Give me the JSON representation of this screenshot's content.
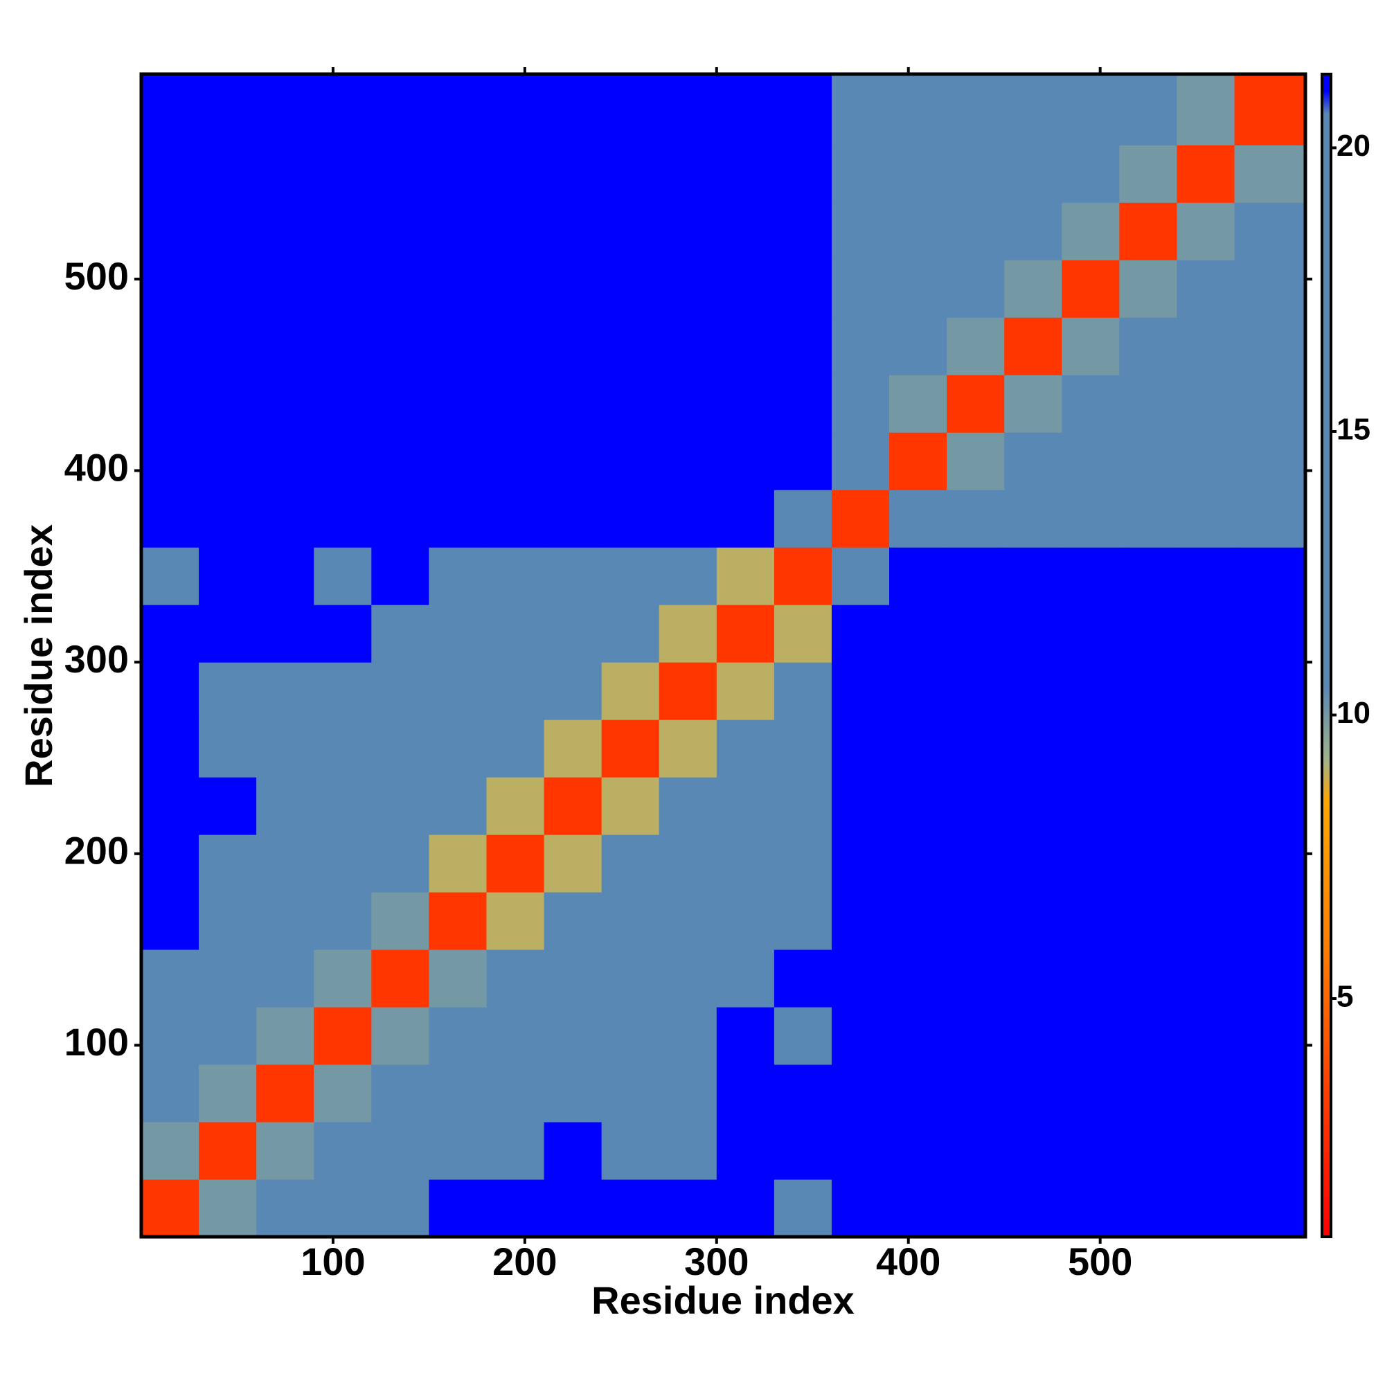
{
  "chart_data": {
    "type": "heatmap",
    "x_label": "Residue index",
    "y_label": "Residue index",
    "bins": [
      0,
      30,
      60,
      90,
      120,
      150,
      180,
      210,
      240,
      270,
      300,
      330,
      360,
      390,
      420,
      450,
      480,
      510,
      540,
      570,
      607
    ],
    "z": [
      [
        3,
        10,
        14,
        12,
        16,
        21,
        21,
        21,
        21,
        21,
        21,
        16,
        21,
        21,
        21,
        21,
        21,
        21,
        21,
        21
      ],
      [
        10,
        3,
        10,
        12,
        16,
        14,
        17,
        21,
        16,
        13,
        21,
        21,
        21,
        21,
        21,
        21,
        21,
        21,
        21,
        21
      ],
      [
        14,
        10,
        3,
        10,
        13,
        14,
        17,
        17,
        13,
        15,
        21,
        21,
        21,
        21,
        21,
        21,
        21,
        21,
        21,
        21
      ],
      [
        12,
        12,
        10,
        3,
        10,
        12,
        16,
        17,
        14,
        16,
        21,
        16,
        21,
        21,
        21,
        21,
        21,
        21,
        21,
        21
      ],
      [
        16,
        16,
        13,
        10,
        3,
        10,
        13,
        16,
        17,
        16,
        17,
        21,
        21,
        21,
        21,
        21,
        21,
        21,
        21,
        21
      ],
      [
        21,
        14,
        14,
        12,
        10,
        3,
        9,
        13,
        16,
        16,
        13,
        12,
        21,
        21,
        21,
        21,
        21,
        21,
        21,
        21
      ],
      [
        21,
        17,
        17,
        16,
        13,
        9,
        3,
        9,
        12,
        13,
        12,
        16,
        21,
        21,
        21,
        21,
        21,
        21,
        21,
        21
      ],
      [
        21,
        21,
        17,
        17,
        16,
        13,
        9,
        3,
        9,
        12,
        16,
        17,
        21,
        21,
        21,
        21,
        21,
        21,
        21,
        21
      ],
      [
        21,
        16,
        13,
        14,
        17,
        16,
        12,
        9,
        3,
        9,
        13,
        16,
        21,
        21,
        21,
        21,
        21,
        21,
        21,
        21
      ],
      [
        21,
        13,
        15,
        16,
        16,
        16,
        13,
        12,
        9,
        3,
        9,
        12,
        21,
        21,
        21,
        21,
        21,
        21,
        21,
        21
      ],
      [
        21,
        21,
        21,
        21,
        17,
        13,
        12,
        16,
        13,
        9,
        3,
        9,
        21,
        21,
        21,
        21,
        21,
        21,
        21,
        21
      ],
      [
        16,
        21,
        21,
        16,
        21,
        12,
        16,
        17,
        16,
        12,
        9,
        3,
        12,
        21,
        21,
        21,
        21,
        21,
        21,
        21
      ],
      [
        21,
        21,
        21,
        21,
        21,
        21,
        21,
        21,
        21,
        21,
        21,
        12,
        3,
        12,
        18,
        18,
        18,
        18,
        18,
        18
      ],
      [
        21,
        21,
        21,
        21,
        21,
        21,
        21,
        21,
        21,
        21,
        21,
        21,
        12,
        3,
        10,
        13,
        16,
        17,
        16,
        16
      ],
      [
        21,
        21,
        21,
        21,
        21,
        21,
        21,
        21,
        21,
        21,
        21,
        21,
        18,
        10,
        3,
        10,
        15,
        16,
        17,
        16
      ],
      [
        21,
        21,
        21,
        21,
        21,
        21,
        21,
        21,
        21,
        21,
        21,
        21,
        18,
        13,
        10,
        3,
        10,
        14,
        15,
        17
      ],
      [
        21,
        21,
        21,
        21,
        21,
        21,
        21,
        21,
        21,
        21,
        21,
        21,
        18,
        16,
        15,
        10,
        3,
        10,
        13,
        15
      ],
      [
        21,
        21,
        21,
        21,
        21,
        21,
        21,
        21,
        21,
        21,
        21,
        21,
        18,
        17,
        16,
        14,
        10,
        3,
        10,
        13
      ],
      [
        21,
        21,
        21,
        21,
        21,
        21,
        21,
        21,
        21,
        21,
        21,
        21,
        18,
        16,
        17,
        15,
        13,
        10,
        3,
        10
      ],
      [
        21,
        21,
        21,
        21,
        21,
        21,
        21,
        21,
        21,
        21,
        21,
        21,
        18,
        16,
        16,
        17,
        15,
        13,
        10,
        3
      ]
    ],
    "xlim": [
      0,
      607
    ],
    "ylim": [
      0,
      607
    ],
    "xticks": [
      100,
      200,
      300,
      400,
      500
    ],
    "yticks": [
      100,
      200,
      300,
      400,
      500
    ],
    "zlim": [
      0.8,
      21.3
    ],
    "zticks": [
      5,
      10,
      15,
      20
    ],
    "colorscale": [
      {
        "value": 0.8,
        "color": "#ff0000"
      },
      {
        "value": 6,
        "color": "#ff8000"
      },
      {
        "value": 8.5,
        "color": "#ffa500"
      },
      {
        "value": 9.2,
        "color": "#9fb38a"
      },
      {
        "value": 10.5,
        "color": "#5a88b5"
      },
      {
        "value": 20.6,
        "color": "#5a88b5"
      },
      {
        "value": 21.0,
        "color": "#0000ff"
      },
      {
        "value": 21.3,
        "color": "#0000ff"
      }
    ]
  }
}
